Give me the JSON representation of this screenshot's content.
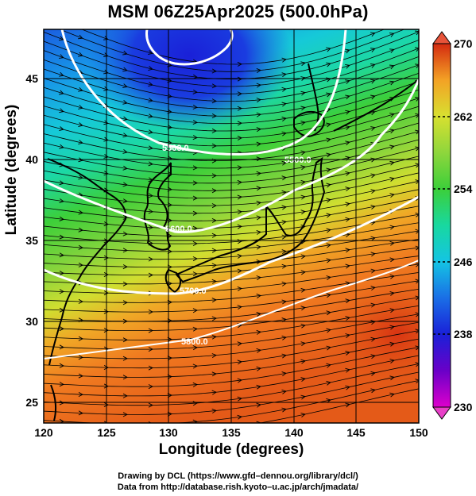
{
  "title": "MSM 06Z25Apr2025 (500.0hPa)",
  "x_axis": {
    "label": "Longitude (degrees)",
    "range": [
      120,
      150
    ],
    "ticks": [
      "120",
      "125",
      "130",
      "135",
      "140",
      "145",
      "150"
    ]
  },
  "y_axis": {
    "label": "Latitude  (degrees)",
    "range": [
      22.4,
      47.6
    ],
    "ticks": [
      "25",
      "30",
      "35",
      "40",
      "45"
    ]
  },
  "colorbar": {
    "range": [
      230,
      270
    ],
    "ticks": [
      "230",
      "238",
      "246",
      "254",
      "262",
      "270"
    ],
    "colors": [
      "#dd00cc",
      "#6a00c8",
      "#1a20d8",
      "#1a6ee6",
      "#14c4e4",
      "#18d8a0",
      "#3ccf3a",
      "#8ed63c",
      "#d8e030",
      "#f3a225",
      "#ef6a1e",
      "#d42a10"
    ]
  },
  "contours": {
    "labels": [
      "5400.0",
      "5500.0",
      "5600.0",
      "5700.0",
      "5800.0"
    ],
    "color": "#ffffff"
  },
  "credits": {
    "line1": "Drawing by DCL (https://www.gfd–dennou.org/library/dcl/)",
    "line2": "Data from http://database.rish.kyoto–u.ac.jp/arch/jmadata/"
  }
}
